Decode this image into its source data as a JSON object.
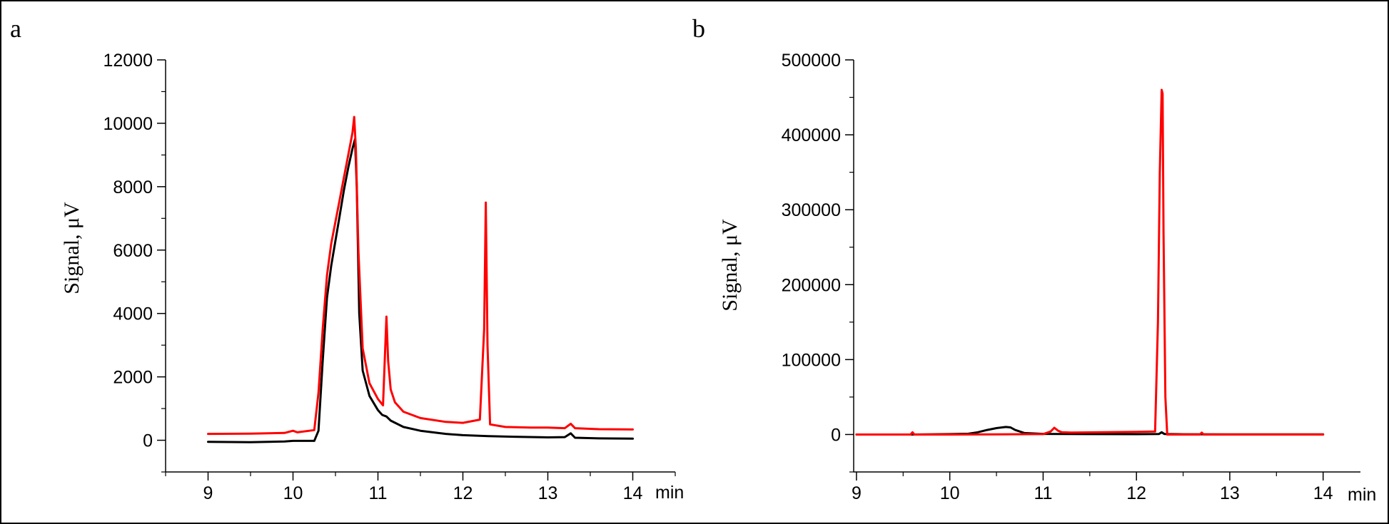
{
  "chart_data": [
    {
      "type": "line",
      "panel_label": "a",
      "ylabel": "Signal, μV",
      "x_unit_label": "min",
      "xlim": [
        8.5,
        14.5
      ],
      "ylim": [
        -1000,
        12000
      ],
      "x_ticks": [
        9,
        10,
        11,
        12,
        13,
        14
      ],
      "x_tick_labels": [
        "9",
        "10",
        "11",
        "12",
        "13",
        "14"
      ],
      "y_ticks": [
        0,
        2000,
        4000,
        6000,
        8000,
        10000,
        12000
      ],
      "y_tick_labels": [
        "0",
        "2000",
        "4000",
        "6000",
        "8000",
        "10000",
        "12000"
      ],
      "grid": false,
      "legend": false,
      "series": [
        {
          "color": "#000000",
          "x": [
            9.0,
            9.5,
            9.9,
            10.0,
            10.25,
            10.3,
            10.35,
            10.4,
            10.45,
            10.5,
            10.55,
            10.6,
            10.65,
            10.7,
            10.73,
            10.75,
            10.78,
            10.82,
            10.9,
            11.0,
            11.05,
            11.1,
            11.15,
            11.3,
            11.5,
            11.8,
            12.0,
            12.3,
            12.6,
            13.0,
            13.2,
            13.27,
            13.32,
            13.6,
            14.0
          ],
          "y": [
            -50,
            -60,
            -40,
            -20,
            -20,
            300,
            2500,
            4500,
            5500,
            6300,
            7100,
            7900,
            8600,
            9200,
            9500,
            8000,
            4000,
            2200,
            1400,
            950,
            800,
            750,
            620,
            420,
            300,
            200,
            160,
            130,
            110,
            90,
            100,
            220,
            80,
            60,
            50
          ]
        },
        {
          "color": "#ff0000",
          "x": [
            9.0,
            9.5,
            9.9,
            10.0,
            10.05,
            10.25,
            10.3,
            10.35,
            10.4,
            10.45,
            10.5,
            10.55,
            10.6,
            10.65,
            10.7,
            10.72,
            10.74,
            10.77,
            10.82,
            10.9,
            11.0,
            11.06,
            11.08,
            11.1,
            11.12,
            11.15,
            11.2,
            11.3,
            11.5,
            11.8,
            12.0,
            12.2,
            12.25,
            12.27,
            12.29,
            12.32,
            12.5,
            12.8,
            13.0,
            13.2,
            13.27,
            13.32,
            13.6,
            14.0
          ],
          "y": [
            200,
            210,
            230,
            300,
            250,
            320,
            1500,
            3500,
            5200,
            6200,
            6900,
            7600,
            8300,
            9000,
            9700,
            10200,
            9200,
            6000,
            2900,
            1800,
            1300,
            1100,
            2500,
            3900,
            2500,
            1600,
            1200,
            900,
            700,
            580,
            550,
            650,
            3500,
            7500,
            3000,
            500,
            420,
            400,
            400,
            380,
            520,
            380,
            350,
            340
          ]
        }
      ]
    },
    {
      "type": "line",
      "panel_label": "b",
      "ylabel": "Signal, μV",
      "x_unit_label": "min",
      "xlim": [
        8.97,
        14.4
      ],
      "ylim": [
        -50000,
        500000
      ],
      "x_ticks": [
        9,
        10,
        11,
        12,
        13,
        14
      ],
      "x_tick_labels": [
        "9",
        "10",
        "11",
        "12",
        "13",
        "14"
      ],
      "y_ticks": [
        0,
        100000,
        200000,
        300000,
        400000,
        500000
      ],
      "y_tick_labels": [
        "0",
        "100000",
        "200000",
        "300000",
        "400000",
        "500000"
      ],
      "grid": false,
      "legend": false,
      "series": [
        {
          "color": "#000000",
          "x": [
            9.0,
            9.6,
            10.0,
            10.2,
            10.3,
            10.4,
            10.5,
            10.6,
            10.65,
            10.7,
            10.8,
            11.0,
            11.5,
            12.0,
            12.24,
            12.27,
            12.3,
            12.5,
            13.0,
            14.0
          ],
          "y": [
            0,
            0,
            500,
            1000,
            3000,
            6000,
            8500,
            10000,
            9500,
            6000,
            2000,
            800,
            500,
            400,
            600,
            3000,
            600,
            300,
            200,
            100
          ]
        },
        {
          "color": "#ff0000",
          "x": [
            9.0,
            9.58,
            9.6,
            9.62,
            10.0,
            11.0,
            11.08,
            11.12,
            11.16,
            11.2,
            11.3,
            12.0,
            12.2,
            12.23,
            12.25,
            12.27,
            12.28,
            12.29,
            12.31,
            12.33,
            12.4,
            12.68,
            12.7,
            12.72,
            13.0,
            14.0
          ],
          "y": [
            0,
            0,
            3000,
            0,
            0,
            500,
            4000,
            9000,
            5000,
            3000,
            2500,
            3500,
            4000,
            150000,
            350000,
            460000,
            455000,
            270000,
            50000,
            0,
            0,
            0,
            2500,
            0,
            0,
            0
          ]
        }
      ]
    }
  ]
}
